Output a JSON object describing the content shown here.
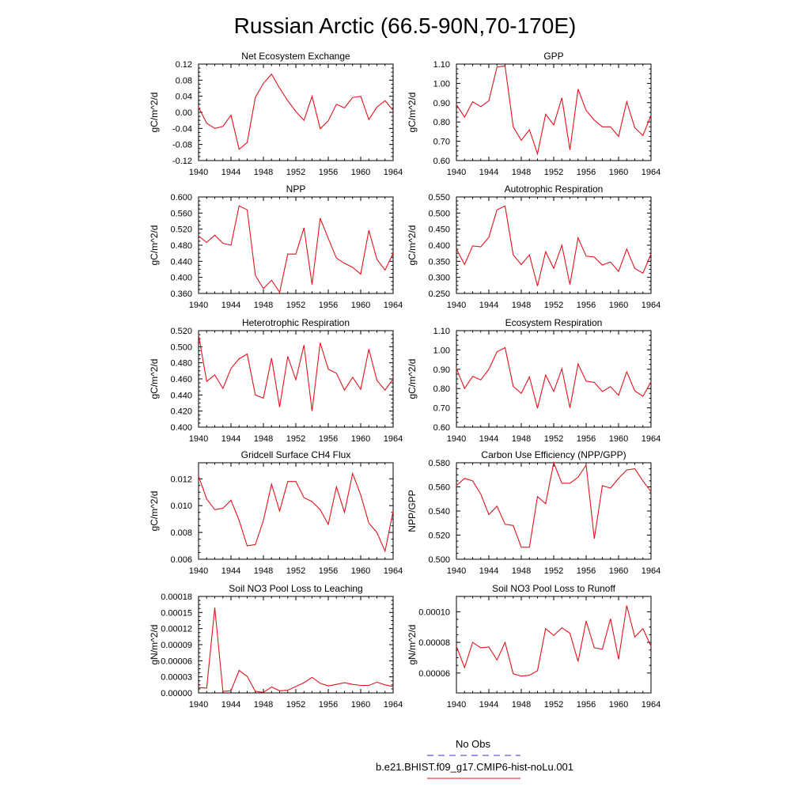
{
  "page_title": "Russian Arctic (66.5-90N,70-170E)",
  "legend": [
    {
      "label": "No Obs",
      "color": "#3333cc",
      "dash": true
    },
    {
      "label": "b.e21.BHIST.f09_g17.CMIP6-hist-noLu.001",
      "color": "#e0141e",
      "dash": false
    }
  ],
  "line_color": "#e0141e",
  "chart_data": [
    {
      "type": "line",
      "title": "Net Ecosystem Exchange",
      "ylabel": "gC/m^2/d",
      "xlim": [
        1940,
        1964
      ],
      "xticks": [
        1940,
        1944,
        1948,
        1952,
        1956,
        1960,
        1964
      ],
      "ylim": [
        -0.12,
        0.12
      ],
      "yticks": [
        -0.12,
        -0.08,
        -0.04,
        0.0,
        0.04,
        0.08,
        0.12
      ],
      "ytick_labels": [
        "-0.12",
        "-0.08",
        "-0.04",
        "0.00",
        "0.04",
        "0.08",
        "0.12"
      ],
      "x": [
        1940,
        1941,
        1942,
        1943,
        1944,
        1945,
        1946,
        1947,
        1948,
        1949,
        1950,
        1951,
        1952,
        1953,
        1954,
        1955,
        1956,
        1957,
        1958,
        1959,
        1960,
        1961,
        1962,
        1963,
        1964
      ],
      "values": [
        0.013,
        -0.027,
        -0.04,
        -0.035,
        -0.007,
        -0.092,
        -0.075,
        0.037,
        0.072,
        0.095,
        0.06,
        0.029,
        0.002,
        -0.02,
        0.04,
        -0.041,
        -0.021,
        0.02,
        0.011,
        0.037,
        0.04,
        -0.018,
        0.013,
        0.029,
        0.005
      ]
    },
    {
      "type": "line",
      "title": "GPP",
      "ylabel": "gC/m^2/d",
      "xlim": [
        1940,
        1964
      ],
      "xticks": [
        1940,
        1944,
        1948,
        1952,
        1956,
        1960,
        1964
      ],
      "ylim": [
        0.6,
        1.1
      ],
      "yticks": [
        0.6,
        0.7,
        0.8,
        0.9,
        1.0,
        1.1
      ],
      "ytick_labels": [
        "0.60",
        "0.70",
        "0.80",
        "0.90",
        "1.00",
        "1.10"
      ],
      "x": [
        1940,
        1941,
        1942,
        1943,
        1944,
        1945,
        1946,
        1947,
        1948,
        1949,
        1950,
        1951,
        1952,
        1953,
        1954,
        1955,
        1956,
        1957,
        1958,
        1959,
        1960,
        1961,
        1962,
        1963,
        1964
      ],
      "values": [
        0.89,
        0.825,
        0.905,
        0.88,
        0.91,
        1.085,
        1.09,
        0.775,
        0.705,
        0.76,
        0.635,
        0.84,
        0.785,
        0.925,
        0.655,
        0.97,
        0.86,
        0.81,
        0.775,
        0.775,
        0.725,
        0.905,
        0.77,
        0.73,
        0.835
      ]
    },
    {
      "type": "line",
      "title": "NPP",
      "ylabel": "gC/m^2/d",
      "xlim": [
        1940,
        1964
      ],
      "xticks": [
        1940,
        1944,
        1948,
        1952,
        1956,
        1960,
        1964
      ],
      "ylim": [
        0.36,
        0.6
      ],
      "yticks": [
        0.36,
        0.4,
        0.44,
        0.48,
        0.52,
        0.56,
        0.6
      ],
      "ytick_labels": [
        "0.360",
        "0.400",
        "0.440",
        "0.480",
        "0.520",
        "0.560",
        "0.600"
      ],
      "x": [
        1940,
        1941,
        1942,
        1943,
        1944,
        1945,
        1946,
        1947,
        1948,
        1949,
        1950,
        1951,
        1952,
        1953,
        1954,
        1955,
        1956,
        1957,
        1958,
        1959,
        1960,
        1961,
        1962,
        1963,
        1964
      ],
      "values": [
        0.503,
        0.487,
        0.505,
        0.485,
        0.48,
        0.578,
        0.568,
        0.405,
        0.372,
        0.393,
        0.363,
        0.458,
        0.458,
        0.523,
        0.382,
        0.547,
        0.497,
        0.448,
        0.435,
        0.425,
        0.408,
        0.517,
        0.445,
        0.418,
        0.46
      ]
    },
    {
      "type": "line",
      "title": "Autotrophic Respiration",
      "ylabel": "gC/m^2/d",
      "xlim": [
        1940,
        1964
      ],
      "xticks": [
        1940,
        1944,
        1948,
        1952,
        1956,
        1960,
        1964
      ],
      "ylim": [
        0.25,
        0.55
      ],
      "yticks": [
        0.25,
        0.3,
        0.35,
        0.4,
        0.45,
        0.5,
        0.55
      ],
      "ytick_labels": [
        "0.250",
        "0.300",
        "0.350",
        "0.400",
        "0.450",
        "0.500",
        "0.550"
      ],
      "x": [
        1940,
        1941,
        1942,
        1943,
        1944,
        1945,
        1946,
        1947,
        1948,
        1949,
        1950,
        1951,
        1952,
        1953,
        1954,
        1955,
        1956,
        1957,
        1958,
        1959,
        1960,
        1961,
        1962,
        1963,
        1964
      ],
      "values": [
        0.388,
        0.34,
        0.398,
        0.395,
        0.425,
        0.51,
        0.522,
        0.37,
        0.34,
        0.37,
        0.273,
        0.38,
        0.328,
        0.4,
        0.278,
        0.423,
        0.366,
        0.363,
        0.338,
        0.348,
        0.318,
        0.388,
        0.328,
        0.313,
        0.373
      ]
    },
    {
      "type": "line",
      "title": "Heterotrophic Respiration",
      "ylabel": "gC/m^2/d",
      "xlim": [
        1940,
        1964
      ],
      "xticks": [
        1940,
        1944,
        1948,
        1952,
        1956,
        1960,
        1964
      ],
      "ylim": [
        0.4,
        0.52
      ],
      "yticks": [
        0.4,
        0.42,
        0.44,
        0.46,
        0.48,
        0.5,
        0.52
      ],
      "ytick_labels": [
        "0.400",
        "0.420",
        "0.440",
        "0.460",
        "0.480",
        "0.500",
        "0.520"
      ],
      "x": [
        1940,
        1941,
        1942,
        1943,
        1944,
        1945,
        1946,
        1947,
        1948,
        1949,
        1950,
        1951,
        1952,
        1953,
        1954,
        1955,
        1956,
        1957,
        1958,
        1959,
        1960,
        1961,
        1962,
        1963,
        1964
      ],
      "values": [
        0.515,
        0.457,
        0.465,
        0.448,
        0.473,
        0.485,
        0.491,
        0.44,
        0.436,
        0.486,
        0.425,
        0.488,
        0.459,
        0.502,
        0.42,
        0.505,
        0.472,
        0.467,
        0.446,
        0.462,
        0.447,
        0.497,
        0.458,
        0.446,
        0.46
      ]
    },
    {
      "type": "line",
      "title": "Ecosystem Respiration",
      "ylabel": "gC/m^2/d",
      "xlim": [
        1940,
        1964
      ],
      "xticks": [
        1940,
        1944,
        1948,
        1952,
        1956,
        1960,
        1964
      ],
      "ylim": [
        0.6,
        1.1
      ],
      "yticks": [
        0.6,
        0.7,
        0.8,
        0.9,
        1.0,
        1.1
      ],
      "ytick_labels": [
        "0.60",
        "0.70",
        "0.80",
        "0.90",
        "1.00",
        "1.10"
      ],
      "x": [
        1940,
        1941,
        1942,
        1943,
        1944,
        1945,
        1946,
        1947,
        1948,
        1949,
        1950,
        1951,
        1952,
        1953,
        1954,
        1955,
        1956,
        1957,
        1958,
        1959,
        1960,
        1961,
        1962,
        1963,
        1964
      ],
      "values": [
        0.905,
        0.8,
        0.863,
        0.845,
        0.9,
        0.99,
        1.012,
        0.812,
        0.775,
        0.86,
        0.698,
        0.87,
        0.785,
        0.903,
        0.7,
        0.928,
        0.838,
        0.832,
        0.785,
        0.81,
        0.765,
        0.887,
        0.788,
        0.76,
        0.835
      ]
    },
    {
      "type": "line",
      "title": "Gridcell Surface CH4 Flux",
      "ylabel": "gC/m^2/d",
      "xlim": [
        1940,
        1964
      ],
      "xticks": [
        1940,
        1944,
        1948,
        1952,
        1956,
        1960,
        1964
      ],
      "ylim": [
        0.006,
        0.0132
      ],
      "yticks": [
        0.006,
        0.008,
        0.01,
        0.012
      ],
      "ytick_labels": [
        "0.006",
        "0.008",
        "0.010",
        "0.012"
      ],
      "x": [
        1940,
        1941,
        1942,
        1943,
        1944,
        1945,
        1946,
        1947,
        1948,
        1949,
        1950,
        1951,
        1952,
        1953,
        1954,
        1955,
        1956,
        1957,
        1958,
        1959,
        1960,
        1961,
        1962,
        1963,
        1964
      ],
      "values": [
        0.0122,
        0.0105,
        0.0097,
        0.0098,
        0.0104,
        0.0089,
        0.007,
        0.0071,
        0.0089,
        0.0116,
        0.0096,
        0.0118,
        0.0118,
        0.0106,
        0.0103,
        0.0097,
        0.0086,
        0.0114,
        0.0095,
        0.0124,
        0.0108,
        0.0087,
        0.008,
        0.0066,
        0.0096
      ]
    },
    {
      "type": "line",
      "title": "Carbon Use Efficiency (NPP/GPP)",
      "ylabel": "NPP/GPP",
      "xlim": [
        1940,
        1964
      ],
      "xticks": [
        1940,
        1944,
        1948,
        1952,
        1956,
        1960,
        1964
      ],
      "ylim": [
        0.5,
        0.58
      ],
      "yticks": [
        0.5,
        0.52,
        0.54,
        0.56,
        0.58
      ],
      "ytick_labels": [
        "0.500",
        "0.520",
        "0.540",
        "0.560",
        "0.580"
      ],
      "x": [
        1940,
        1941,
        1942,
        1943,
        1944,
        1945,
        1946,
        1947,
        1948,
        1949,
        1950,
        1951,
        1952,
        1953,
        1954,
        1955,
        1956,
        1957,
        1958,
        1959,
        1960,
        1961,
        1962,
        1963,
        1964
      ],
      "values": [
        0.561,
        0.567,
        0.565,
        0.554,
        0.537,
        0.544,
        0.529,
        0.528,
        0.51,
        0.51,
        0.552,
        0.546,
        0.58,
        0.563,
        0.563,
        0.568,
        0.578,
        0.517,
        0.561,
        0.559,
        0.567,
        0.574,
        0.575,
        0.565,
        0.556
      ]
    },
    {
      "type": "line",
      "title": "Soil NO3 Pool Loss to Leaching",
      "ylabel": "gN/m^2/d",
      "xlim": [
        1940,
        1964
      ],
      "xticks": [
        1940,
        1944,
        1948,
        1952,
        1956,
        1960,
        1964
      ],
      "ylim": [
        0,
        0.00018
      ],
      "yticks": [
        0,
        3e-05,
        6e-05,
        9e-05,
        0.00012,
        0.00015,
        0.00018
      ],
      "ytick_labels": [
        "0.00000",
        "0.00003",
        "0.00006",
        "0.00009",
        "0.00012",
        "0.00015",
        "0.00018"
      ],
      "x": [
        1940,
        1941,
        1942,
        1943,
        1944,
        1945,
        1946,
        1947,
        1948,
        1949,
        1950,
        1951,
        1952,
        1953,
        1954,
        1955,
        1956,
        1957,
        1958,
        1959,
        1960,
        1961,
        1962,
        1963,
        1964
      ],
      "values": [
        1e-05,
        9e-06,
        0.000159,
        3e-06,
        4e-06,
        4.2e-05,
        3.1e-05,
        3e-06,
        1e-06,
        1.1e-05,
        4e-06,
        5e-06,
        1.2e-05,
        1.9e-05,
        2.9e-05,
        1.8e-05,
        1.3e-05,
        1.6e-05,
        1.9e-05,
        1.6e-05,
        1.4e-05,
        1.4e-05,
        2e-05,
        1.5e-05,
        1.2e-05
      ]
    },
    {
      "type": "line",
      "title": "Soil NO3 Pool Loss to Runoff",
      "ylabel": "gN/m^2/d",
      "xlim": [
        1940,
        1964
      ],
      "xticks": [
        1940,
        1944,
        1948,
        1952,
        1956,
        1960,
        1964
      ],
      "ylim": [
        4.7e-05,
        0.00011
      ],
      "yticks": [
        6e-05,
        8e-05,
        0.0001
      ],
      "ytick_labels": [
        "0.00006",
        "0.00008",
        "0.00010"
      ],
      "x": [
        1940,
        1941,
        1942,
        1943,
        1944,
        1945,
        1946,
        1947,
        1948,
        1949,
        1950,
        1951,
        1952,
        1953,
        1954,
        1955,
        1956,
        1957,
        1958,
        1959,
        1960,
        1961,
        1962,
        1963,
        1964
      ],
      "values": [
        7.75e-05,
        6.35e-05,
        8e-05,
        7.65e-05,
        7.7e-05,
        6.85e-05,
        8e-05,
        5.95e-05,
        5.8e-05,
        5.85e-05,
        6.15e-05,
        8.9e-05,
        8.45e-05,
        8.95e-05,
        8.6e-05,
        6.75e-05,
        9.4e-05,
        7.65e-05,
        7.55e-05,
        9.55e-05,
        6.9e-05,
        0.000104,
        8.35e-05,
        8.9e-05,
        7.75e-05
      ]
    }
  ]
}
